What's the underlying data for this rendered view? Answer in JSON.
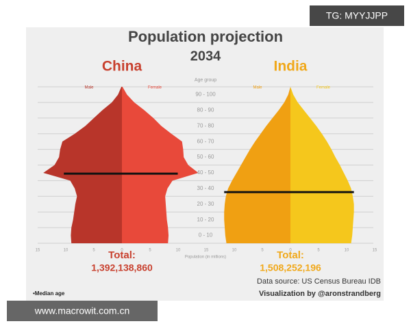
{
  "title": "Population projection",
  "subtitle": "2034",
  "age_axis_label": "Age group",
  "age_groups": [
    "0 - 10",
    "10 - 20",
    "20 - 30",
    "30 - 40",
    "40 - 50",
    "50 - 60",
    "60 - 70",
    "70 - 80",
    "80 - 90",
    "90 - 100"
  ],
  "x_axis_label": "Population (in millions)",
  "source": "Data source: US Census Bureau IDB",
  "credit": "Visualization by @aronstrandberg",
  "median_note": "•Median age",
  "watermark_top": "TG: MYYJJPP",
  "watermark_bottom": "www.macrowit.com.cn",
  "chart_data": [
    {
      "type": "pyramid",
      "title": "China",
      "title_color": "#c8402e",
      "total_label": "Total:",
      "total": {
        "value": 1392138860,
        "label": "1,392,138,860"
      },
      "median_age": 44.5,
      "ages": [
        0,
        5,
        10,
        15,
        20,
        25,
        30,
        35,
        40,
        45,
        50,
        55,
        60,
        65,
        70,
        75,
        80,
        85,
        90,
        95,
        100
      ],
      "ylim": [
        0,
        100
      ],
      "xlim": [
        0,
        15
      ],
      "male_ticks": [
        15,
        10,
        5,
        0
      ],
      "female_ticks": [
        5,
        10
      ],
      "series": [
        {
          "name": "Male",
          "color": "#b8352a",
          "values": [
            9.0,
            9.1,
            9.0,
            8.7,
            8.5,
            8.3,
            8.0,
            8.4,
            9.2,
            14.0,
            12.0,
            11.2,
            11.0,
            10.6,
            8.4,
            6.5,
            5.0,
            3.5,
            1.8,
            0.7,
            0.1
          ]
        },
        {
          "name": "Female",
          "color": "#e8493a",
          "values": [
            8.2,
            8.3,
            8.2,
            8.0,
            7.9,
            7.8,
            7.7,
            8.1,
            9.0,
            13.6,
            11.8,
            11.0,
            10.9,
            10.7,
            8.8,
            7.0,
            5.6,
            4.0,
            2.2,
            0.9,
            0.1
          ]
        }
      ]
    },
    {
      "type": "pyramid",
      "title": "India",
      "title_color": "#f0a81a",
      "total_label": "Total:",
      "total": {
        "value": 1508252196,
        "label": "1,508,252,196"
      },
      "median_age": 32.7,
      "ages": [
        0,
        5,
        10,
        15,
        20,
        25,
        30,
        35,
        40,
        45,
        50,
        55,
        60,
        65,
        70,
        75,
        80,
        85,
        90,
        95,
        100
      ],
      "ylim": [
        0,
        100
      ],
      "xlim": [
        0,
        15
      ],
      "male_ticks": [
        15,
        10,
        5
      ],
      "female_ticks": [
        0,
        5,
        10,
        15
      ],
      "series": [
        {
          "name": "Male",
          "color": "#f0a012",
          "values": [
            11.4,
            11.6,
            11.7,
            11.8,
            11.8,
            11.7,
            11.5,
            11.1,
            10.4,
            9.6,
            8.8,
            8.0,
            7.2,
            6.3,
            5.3,
            4.3,
            3.2,
            2.1,
            1.1,
            0.4,
            0.0
          ]
        },
        {
          "name": "Female",
          "color": "#f5c71c",
          "values": [
            10.8,
            11.0,
            11.1,
            11.2,
            11.3,
            11.3,
            11.1,
            10.8,
            10.2,
            9.5,
            8.8,
            8.0,
            7.3,
            6.5,
            5.6,
            4.6,
            3.5,
            2.4,
            1.3,
            0.5,
            0.0
          ]
        }
      ]
    }
  ]
}
